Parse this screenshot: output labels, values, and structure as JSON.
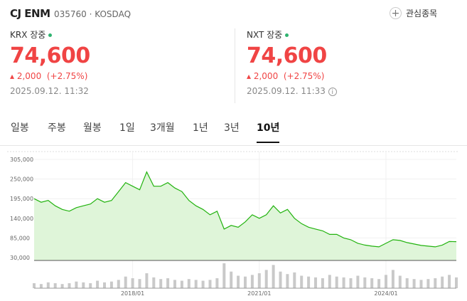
{
  "header": {
    "name": "CJ ENM",
    "code": "035760",
    "market": "KOSDAQ",
    "watch_button": "관심종목"
  },
  "quotes": [
    {
      "venue": "KRX 장중",
      "price": "74,600",
      "change": "2,000",
      "change_rate": "(+2.75%)",
      "time": "2025.09.12. 11:32"
    },
    {
      "venue": "NXT 장중",
      "price": "74,600",
      "change": "2,000",
      "change_rate": "(+2.75%)",
      "time": "2025.09.12. 11:33"
    }
  ],
  "tabs": [
    "일봉",
    "주봉",
    "월봉",
    "1일",
    "3개월",
    "1년",
    "3년",
    "10년"
  ],
  "chart_data": {
    "type": "area",
    "categories": [
      null,
      null,
      null,
      null,
      null,
      null,
      null,
      null,
      null,
      null,
      null,
      null,
      null,
      null,
      "2018/01",
      null,
      null,
      null,
      null,
      null,
      null,
      null,
      null,
      null,
      null,
      null,
      null,
      null,
      null,
      null,
      null,
      null,
      "2021/01",
      null,
      null,
      null,
      null,
      null,
      null,
      null,
      null,
      null,
      null,
      null,
      null,
      null,
      null,
      null,
      null,
      null,
      "2024/01",
      null,
      null,
      null,
      null,
      null,
      null,
      null,
      null,
      null,
      null
    ],
    "series": [
      {
        "color": "#22b30f",
        "values": [
          195000,
          185000,
          190000,
          175000,
          165000,
          160000,
          170000,
          175000,
          180000,
          195000,
          185000,
          190000,
          215000,
          240000,
          230000,
          220000,
          270000,
          230000,
          230000,
          240000,
          225000,
          215000,
          190000,
          175000,
          165000,
          150000,
          160000,
          110000,
          120000,
          115000,
          130000,
          150000,
          140000,
          150000,
          175000,
          155000,
          165000,
          140000,
          125000,
          115000,
          110000,
          105000,
          95000,
          95000,
          85000,
          80000,
          70000,
          65000,
          62000,
          60000,
          70000,
          80000,
          78000,
          72000,
          68000,
          64000,
          62000,
          60000,
          65000,
          75000,
          74600
        ]
      }
    ],
    "volume": {
      "color": "#c9c9c9",
      "values": [
        6,
        5,
        7,
        6,
        5,
        6,
        8,
        7,
        6,
        9,
        7,
        8,
        10,
        14,
        12,
        11,
        18,
        13,
        11,
        12,
        10,
        9,
        11,
        10,
        9,
        10,
        12,
        30,
        20,
        15,
        14,
        16,
        18,
        22,
        28,
        20,
        17,
        19,
        15,
        14,
        13,
        12,
        16,
        14,
        13,
        12,
        15,
        13,
        12,
        11,
        16,
        22,
        15,
        12,
        11,
        10,
        11,
        12,
        14,
        16,
        13
      ]
    },
    "ylim": [
      22000,
      327000
    ],
    "yticks": [
      {
        "value": 30000,
        "label": "30,000"
      },
      {
        "value": 85000,
        "label": "85,000"
      },
      {
        "value": 140000,
        "label": "140,000"
      },
      {
        "value": 195000,
        "label": "195,000"
      },
      {
        "value": 250000,
        "label": "250,000"
      },
      {
        "value": 305000,
        "label": "305,000"
      }
    ],
    "grid": true
  }
}
